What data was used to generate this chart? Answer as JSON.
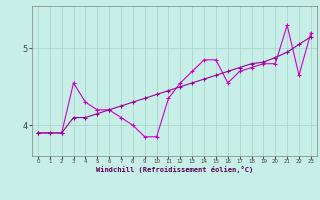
{
  "xlabel": "Windchill (Refroidissement éolien,°C)",
  "bg_color": "#c8eee8",
  "grid_color": "#a8d8cc",
  "line_color1": "#990099",
  "line_color2": "#cc00cc",
  "xlim": [
    -0.5,
    23.5
  ],
  "ylim": [
    3.6,
    5.55
  ],
  "yticks": [
    4,
    5
  ],
  "xticks": [
    0,
    1,
    2,
    3,
    4,
    5,
    6,
    7,
    8,
    9,
    10,
    11,
    12,
    13,
    14,
    15,
    16,
    17,
    18,
    19,
    20,
    21,
    22,
    23
  ],
  "s1_x": [
    0,
    1,
    2,
    3,
    4,
    5,
    6,
    7,
    8,
    9,
    10,
    11,
    12,
    13,
    14,
    15,
    16,
    17,
    18,
    19,
    20,
    21,
    22,
    23
  ],
  "s1_y": [
    3.9,
    3.9,
    3.9,
    4.55,
    4.3,
    4.2,
    4.2,
    4.1,
    4.0,
    3.85,
    3.85,
    4.35,
    4.55,
    4.7,
    4.85,
    4.85,
    4.55,
    4.7,
    4.75,
    4.8,
    4.8,
    5.3,
    4.65,
    5.2
  ],
  "s2_x": [
    0,
    1,
    2,
    3,
    4,
    5,
    6,
    7,
    8,
    9,
    10,
    11,
    12,
    13,
    14,
    15,
    16,
    17,
    18,
    19,
    20,
    21,
    22,
    23
  ],
  "s2_y": [
    3.9,
    3.9,
    3.9,
    4.1,
    4.1,
    4.15,
    4.2,
    4.25,
    4.3,
    4.35,
    4.4,
    4.45,
    4.5,
    4.55,
    4.6,
    4.65,
    4.7,
    4.75,
    4.8,
    4.82,
    4.88,
    4.95,
    5.05,
    5.15
  ]
}
